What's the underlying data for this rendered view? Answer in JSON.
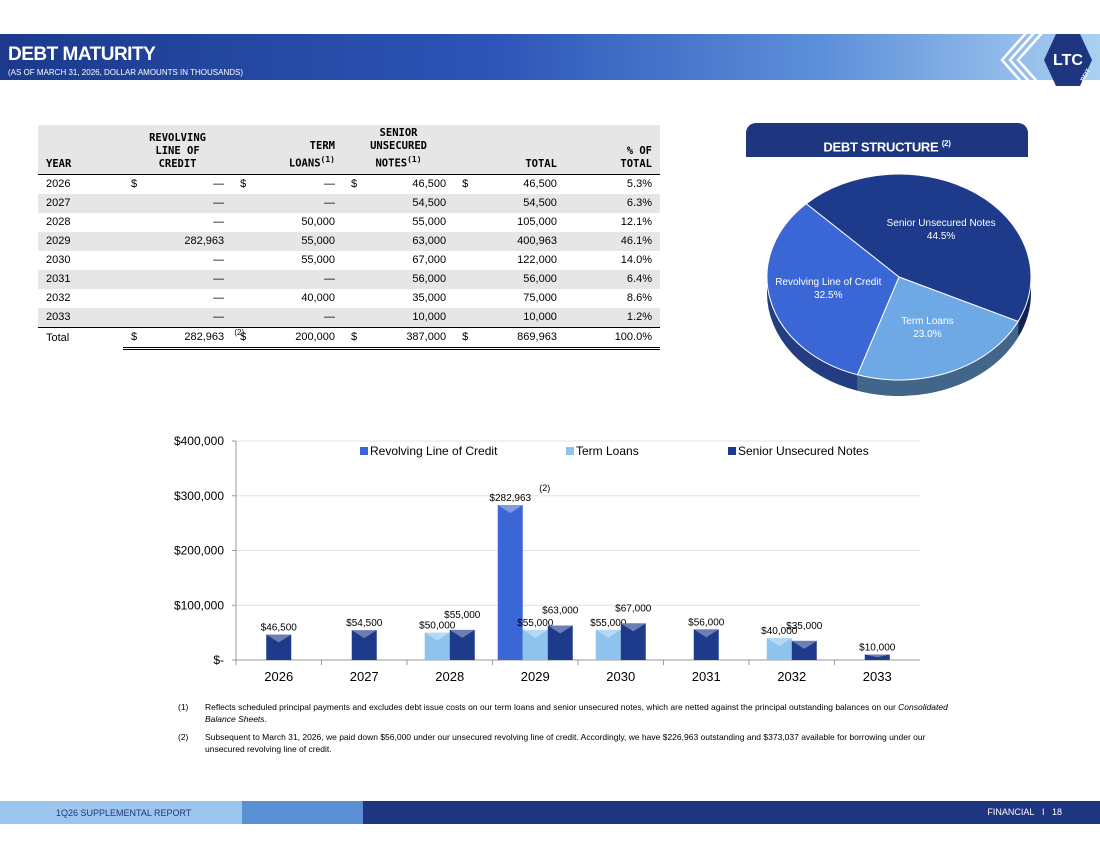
{
  "header": {
    "title": "DEBT MATURITY",
    "subtitle": "(AS OF MARCH 31, 2026, DOLLAR AMOUNTS IN THOUSANDS)",
    "logo_text": "LTC",
    "logo_sub": "REIT"
  },
  "table": {
    "headers": {
      "year": "YEAR",
      "revolving_1": "REVOLVING",
      "revolving_2": "LINE OF",
      "revolving_3": "CREDIT",
      "term_1": "TERM",
      "term_2": "LOANS",
      "term_sup": "(1)",
      "senior_1": "SENIOR",
      "senior_2": "UNSECURED",
      "senior_3": "NOTES",
      "senior_sup": "(1)",
      "total": "TOTAL",
      "pct_1": "% OF",
      "pct_2": "TOTAL"
    },
    "dollar": "$",
    "rows": [
      {
        "year": "2026",
        "revolving": "—",
        "term": "—",
        "senior": "46,500",
        "total": "46,500",
        "pct": "5.3%"
      },
      {
        "year": "2027",
        "revolving": "—",
        "term": "—",
        "senior": "54,500",
        "total": "54,500",
        "pct": "6.3%"
      },
      {
        "year": "2028",
        "revolving": "—",
        "term": "50,000",
        "senior": "55,000",
        "total": "105,000",
        "pct": "12.1%"
      },
      {
        "year": "2029",
        "revolving": "282,963",
        "term": "55,000",
        "senior": "63,000",
        "total": "400,963",
        "pct": "46.1%"
      },
      {
        "year": "2030",
        "revolving": "—",
        "term": "55,000",
        "senior": "67,000",
        "total": "122,000",
        "pct": "14.0%"
      },
      {
        "year": "2031",
        "revolving": "—",
        "term": "—",
        "senior": "56,000",
        "total": "56,000",
        "pct": "6.4%"
      },
      {
        "year": "2032",
        "revolving": "—",
        "term": "40,000",
        "senior": "35,000",
        "total": "75,000",
        "pct": "8.6%"
      },
      {
        "year": "2033",
        "revolving": "—",
        "term": "—",
        "senior": "10,000",
        "total": "10,000",
        "pct": "1.2%"
      }
    ],
    "total_row": {
      "label": "Total",
      "revolving": "282,963",
      "revolving_sup": "(2)",
      "term": "200,000",
      "senior": "387,000",
      "total": "869,963",
      "pct": "100.0%"
    }
  },
  "debt_structure": {
    "title": "DEBT STRUCTURE",
    "title_sup": "(2)"
  },
  "chart_data": [
    {
      "type": "pie",
      "slices": [
        {
          "label": "Senior Unsecured Notes",
          "value": 44.5,
          "display": "44.5%",
          "color": "#1e3a8a"
        },
        {
          "label": "Term Loans",
          "value": 23.0,
          "display": "23.0%",
          "color": "#6ea9e6"
        },
        {
          "label": "Revolving Line of Credit",
          "value": 32.5,
          "display": "32.5%",
          "color": "#3a66d6"
        }
      ]
    },
    {
      "type": "bar",
      "categories": [
        "2026",
        "2027",
        "2028",
        "2029",
        "2030",
        "2031",
        "2032",
        "2033"
      ],
      "series": [
        {
          "name": "Revolving Line of Credit",
          "color": "#3a66d6",
          "values": [
            0,
            0,
            0,
            282963,
            0,
            0,
            0,
            0
          ]
        },
        {
          "name": "Term Loans",
          "color": "#8ec3ee",
          "values": [
            0,
            0,
            50000,
            55000,
            55000,
            0,
            40000,
            0
          ]
        },
        {
          "name": "Senior Unsecured Notes",
          "color": "#1e3a8a",
          "values": [
            46500,
            54500,
            55000,
            63000,
            67000,
            56000,
            35000,
            10000
          ]
        }
      ],
      "ylim": [
        0,
        400000
      ],
      "yticks": [
        0,
        100000,
        200000,
        300000,
        400000
      ],
      "ytick_labels": [
        "$-",
        "$100,000",
        "$200,000",
        "$300,000",
        "$400,000"
      ],
      "annotation": "(2)",
      "legend": "top-center"
    }
  ],
  "footnotes": [
    {
      "num": "(1)",
      "text": "Reflects scheduled principal payments and excludes debt issue costs on our term loans and senior unsecured notes, which are netted against the principal outstanding balances on our ",
      "italic": "Consolidated Balance Sheets",
      "tail": "."
    },
    {
      "num": "(2)",
      "text": "Subsequent to March 31, 2026, we paid down $56,000 under our unsecured revolving line of credit. Accordingly, we have $226,963 outstanding and $373,037 available for borrowing under our unsecured revolving line of credit."
    }
  ],
  "footer": {
    "left": "1Q26 SUPPLEMENTAL REPORT",
    "right_section": "FINANCIAL",
    "separator": "I",
    "page": "18"
  }
}
